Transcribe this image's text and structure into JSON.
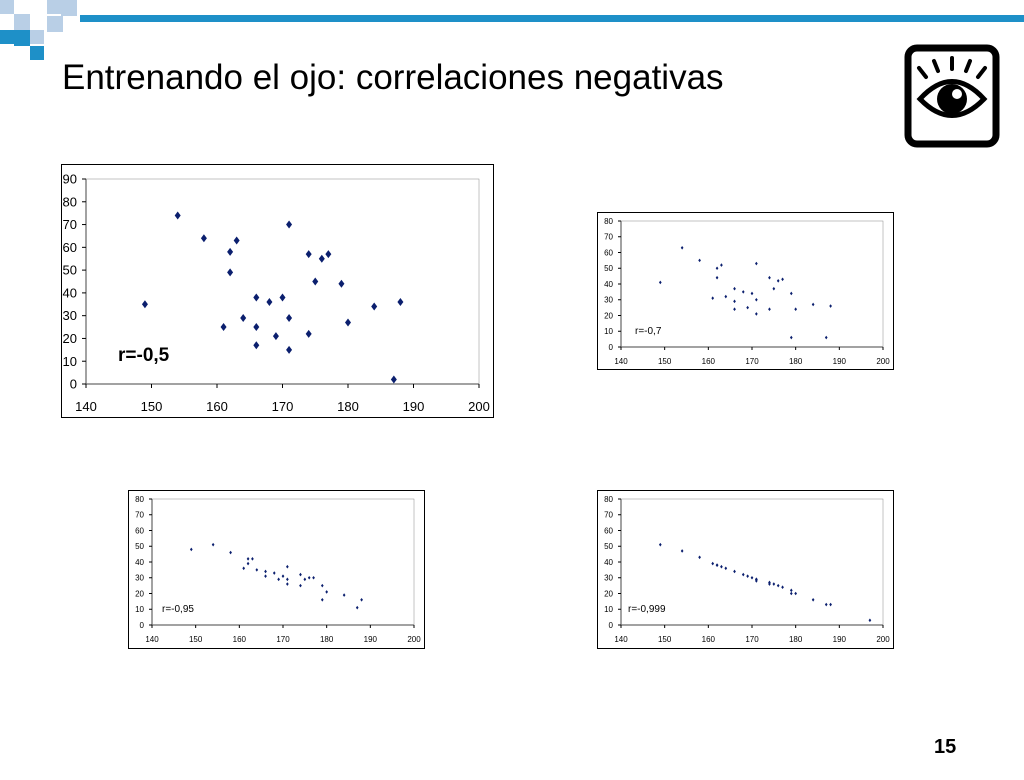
{
  "slide": {
    "title": "Entrenando el ojo: correlaciones negativas",
    "page_number": "15",
    "accent_color": "#1e90c8",
    "accent_light": "#b9cfe6",
    "icon": "eye-icon"
  },
  "chart_data": [
    {
      "type": "scatter",
      "annotation": "r=-0,5",
      "xlim": [
        140,
        200
      ],
      "ylim": [
        0,
        90
      ],
      "xticks": [
        140,
        150,
        160,
        170,
        180,
        190,
        200
      ],
      "yticks": [
        0,
        10,
        20,
        30,
        40,
        50,
        60,
        70,
        80,
        90
      ],
      "grid": false,
      "marker_color": "#0b1f6e",
      "points": [
        [
          149,
          35
        ],
        [
          154,
          74
        ],
        [
          158,
          64
        ],
        [
          161,
          25
        ],
        [
          162,
          58
        ],
        [
          162,
          49
        ],
        [
          163,
          63
        ],
        [
          164,
          29
        ],
        [
          166,
          38
        ],
        [
          166,
          25
        ],
        [
          166,
          17
        ],
        [
          168,
          36
        ],
        [
          169,
          21
        ],
        [
          170,
          38
        ],
        [
          171,
          70
        ],
        [
          171,
          29
        ],
        [
          171,
          15
        ],
        [
          174,
          57
        ],
        [
          174,
          22
        ],
        [
          175,
          45
        ],
        [
          176,
          55
        ],
        [
          177,
          57
        ],
        [
          179,
          44
        ],
        [
          180,
          27
        ],
        [
          184,
          34
        ],
        [
          187,
          2
        ],
        [
          188,
          36
        ]
      ]
    },
    {
      "type": "scatter",
      "annotation": "r=-0,7",
      "xlim": [
        140,
        200
      ],
      "ylim": [
        0,
        80
      ],
      "xticks": [
        140,
        150,
        160,
        170,
        180,
        190,
        200
      ],
      "yticks": [
        0,
        10,
        20,
        30,
        40,
        50,
        60,
        70,
        80
      ],
      "grid": false,
      "marker_color": "#0b1f6e",
      "points": [
        [
          149,
          41
        ],
        [
          154,
          63
        ],
        [
          158,
          55
        ],
        [
          161,
          31
        ],
        [
          162,
          50
        ],
        [
          162,
          44
        ],
        [
          163,
          52
        ],
        [
          164,
          32
        ],
        [
          166,
          37
        ],
        [
          166,
          29
        ],
        [
          166,
          24
        ],
        [
          168,
          35
        ],
        [
          169,
          25
        ],
        [
          170,
          34
        ],
        [
          171,
          53
        ],
        [
          171,
          30
        ],
        [
          171,
          21
        ],
        [
          174,
          44
        ],
        [
          174,
          24
        ],
        [
          175,
          37
        ],
        [
          176,
          42
        ],
        [
          177,
          43
        ],
        [
          179,
          34
        ],
        [
          179,
          6
        ],
        [
          180,
          24
        ],
        [
          184,
          27
        ],
        [
          187,
          6
        ],
        [
          188,
          26
        ]
      ]
    },
    {
      "type": "scatter",
      "annotation": "r=-0,95",
      "xlim": [
        140,
        200
      ],
      "ylim": [
        0,
        80
      ],
      "xticks": [
        140,
        150,
        160,
        170,
        180,
        190,
        200
      ],
      "yticks": [
        0,
        10,
        20,
        30,
        40,
        50,
        60,
        70,
        80
      ],
      "grid": false,
      "marker_color": "#0b1f6e",
      "points": [
        [
          149,
          48
        ],
        [
          154,
          51
        ],
        [
          158,
          46
        ],
        [
          161,
          36
        ],
        [
          162,
          42
        ],
        [
          162,
          39
        ],
        [
          163,
          42
        ],
        [
          164,
          35
        ],
        [
          166,
          34
        ],
        [
          166,
          31
        ],
        [
          168,
          33
        ],
        [
          169,
          29
        ],
        [
          170,
          31
        ],
        [
          171,
          37
        ],
        [
          171,
          29
        ],
        [
          171,
          26
        ],
        [
          174,
          32
        ],
        [
          174,
          25
        ],
        [
          175,
          29
        ],
        [
          176,
          30
        ],
        [
          177,
          30
        ],
        [
          179,
          16
        ],
        [
          179,
          25
        ],
        [
          180,
          21
        ],
        [
          184,
          19
        ],
        [
          187,
          11
        ],
        [
          188,
          16
        ]
      ]
    },
    {
      "type": "scatter",
      "annotation": "r=-0,999",
      "xlim": [
        140,
        200
      ],
      "ylim": [
        0,
        80
      ],
      "xticks": [
        140,
        150,
        160,
        170,
        180,
        190,
        200
      ],
      "yticks": [
        0,
        10,
        20,
        30,
        40,
        50,
        60,
        70,
        80
      ],
      "grid": false,
      "marker_color": "#0b1f6e",
      "points": [
        [
          149,
          51
        ],
        [
          154,
          47
        ],
        [
          158,
          43
        ],
        [
          161,
          39
        ],
        [
          162,
          38
        ],
        [
          162,
          38
        ],
        [
          163,
          37
        ],
        [
          164,
          36
        ],
        [
          166,
          34
        ],
        [
          168,
          32
        ],
        [
          169,
          31
        ],
        [
          170,
          30
        ],
        [
          171,
          29
        ],
        [
          171,
          29
        ],
        [
          171,
          28
        ],
        [
          174,
          27
        ],
        [
          174,
          26
        ],
        [
          175,
          26
        ],
        [
          176,
          25
        ],
        [
          177,
          24
        ],
        [
          179,
          22
        ],
        [
          179,
          20
        ],
        [
          180,
          20
        ],
        [
          184,
          16
        ],
        [
          187,
          13
        ],
        [
          188,
          13
        ],
        [
          197,
          3
        ]
      ]
    }
  ]
}
